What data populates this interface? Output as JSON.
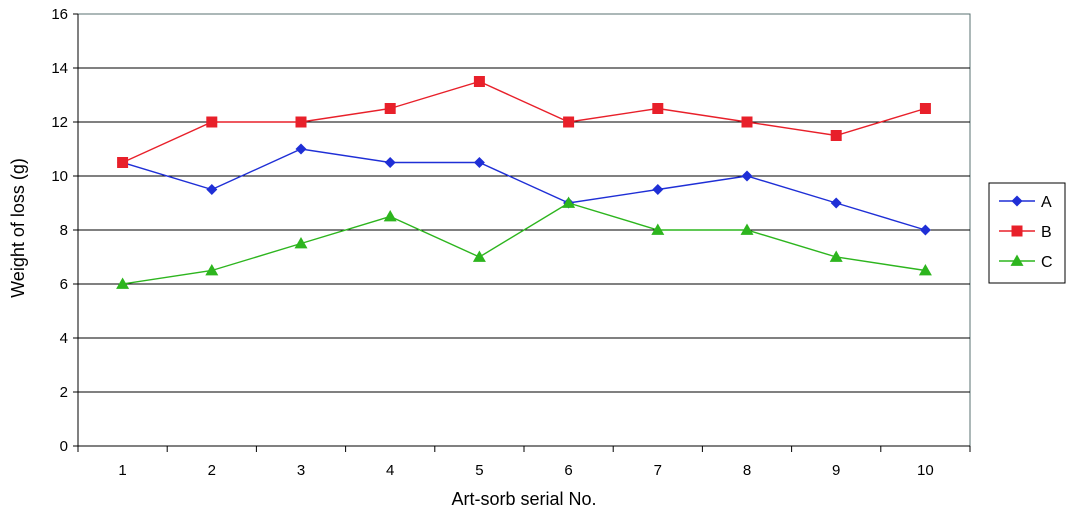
{
  "chart_data": {
    "type": "line",
    "title": "",
    "xlabel": "Art-sorb serial No.",
    "ylabel": "Weight of loss (g)",
    "x": [
      "1",
      "2",
      "3",
      "4",
      "5",
      "6",
      "7",
      "8",
      "9",
      "10"
    ],
    "ylim": [
      0,
      16
    ],
    "yticks": [
      "0",
      "2",
      "4",
      "6",
      "8",
      "10",
      "12",
      "14",
      "16"
    ],
    "grid": "horizontal",
    "legend_position": "right",
    "series": [
      {
        "name": "A",
        "color": "#1f2fd6",
        "marker": "diamond",
        "values": [
          10.5,
          9.5,
          11.0,
          10.5,
          10.5,
          9.0,
          9.5,
          10.0,
          9.0,
          8.0
        ]
      },
      {
        "name": "B",
        "color": "#e8202a",
        "marker": "square",
        "values": [
          10.5,
          12.0,
          12.0,
          12.5,
          13.5,
          12.0,
          12.5,
          12.0,
          11.5,
          12.5
        ]
      },
      {
        "name": "C",
        "color": "#2db51e",
        "marker": "triangle",
        "values": [
          6.0,
          6.5,
          7.5,
          8.5,
          7.0,
          9.0,
          8.0,
          8.0,
          7.0,
          6.5
        ]
      }
    ]
  }
}
